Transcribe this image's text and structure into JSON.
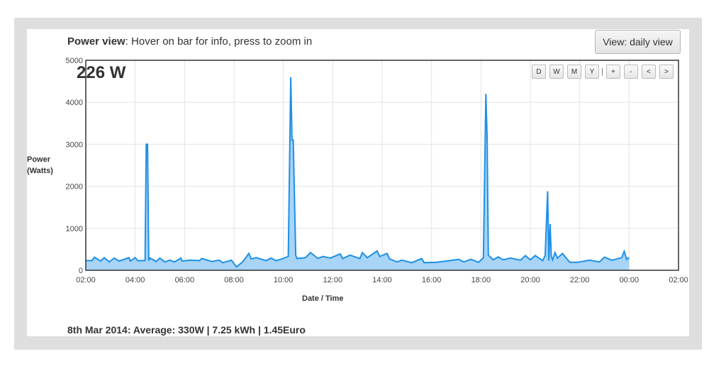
{
  "header": {
    "title_bold": "Power view",
    "title_rest": ": Hover on bar for info, press to zoom in",
    "view_button": "View: daily view"
  },
  "readout": {
    "current_power": "226 W"
  },
  "controls": [
    "D",
    "W",
    "M",
    "Y",
    "+",
    "-",
    "<",
    ">"
  ],
  "controls_separator": "|",
  "summary": "8th Mar 2014: Average: 330W | 7.25 kWh | 1.45Euro",
  "colors": {
    "line": "#1e90e6",
    "fill": "#a7d4f7",
    "grid": "#e3e3e3",
    "axis": "#333333"
  },
  "chart_data": {
    "type": "area",
    "xlabel": "Date / Time",
    "ylabel": [
      "Power",
      "(Watts)"
    ],
    "ylim": [
      0,
      5000
    ],
    "xlim": [
      2,
      26
    ],
    "yticks": [
      0,
      1000,
      2000,
      3000,
      4000,
      5000
    ],
    "xticks": [
      "02:00",
      "04:00",
      "06:00",
      "08:00",
      "10:00",
      "12:00",
      "14:00",
      "16:00",
      "18:00",
      "20:00",
      "22:00",
      "00:00",
      "02:00"
    ],
    "grid": true,
    "series": [
      {
        "x": [
          2.0,
          2.25,
          2.35,
          2.6,
          2.75,
          2.95,
          3.15,
          3.35,
          3.75,
          3.8,
          4.0,
          4.1,
          4.4,
          4.45,
          4.5,
          4.55,
          4.6,
          4.85,
          5.0,
          5.2,
          5.4,
          5.6,
          5.85,
          5.9,
          6.2,
          6.6,
          6.7,
          7.1,
          7.4,
          7.55,
          7.9,
          8.1,
          8.35,
          8.6,
          8.7,
          8.9,
          9.3,
          9.5,
          9.7,
          9.9,
          10.2,
          10.3,
          10.35,
          10.4,
          10.5,
          10.55,
          10.9,
          11.1,
          11.4,
          11.6,
          11.9,
          12.3,
          12.4,
          12.7,
          13.1,
          13.2,
          13.4,
          13.8,
          13.9,
          14.2,
          14.3,
          14.6,
          14.8,
          15.2,
          15.6,
          15.7,
          16.2,
          16.6,
          17.1,
          17.3,
          17.6,
          17.9,
          18.1,
          18.2,
          18.25,
          18.3,
          18.5,
          18.7,
          18.9,
          19.2,
          19.6,
          19.8,
          20.0,
          20.2,
          20.5,
          20.6,
          20.7,
          20.75,
          20.8,
          20.85,
          20.9,
          21.0,
          21.1,
          21.3,
          21.6,
          21.9,
          22.4,
          22.8,
          23.0,
          23.3,
          23.7,
          23.8,
          23.9,
          24.0
        ],
        "values": [
          230,
          230,
          310,
          220,
          300,
          200,
          290,
          220,
          300,
          220,
          300,
          230,
          230,
          3000,
          3000,
          230,
          290,
          210,
          290,
          200,
          240,
          200,
          290,
          220,
          240,
          230,
          280,
          210,
          240,
          180,
          240,
          80,
          200,
          400,
          270,
          300,
          230,
          290,
          230,
          260,
          330,
          4600,
          3100,
          3100,
          360,
          280,
          300,
          420,
          280,
          330,
          290,
          390,
          280,
          360,
          280,
          420,
          300,
          460,
          330,
          400,
          270,
          200,
          240,
          180,
          280,
          180,
          190,
          220,
          260,
          200,
          260,
          190,
          300,
          4200,
          3200,
          360,
          250,
          320,
          250,
          290,
          240,
          350,
          250,
          350,
          230,
          350,
          1880,
          230,
          1100,
          330,
          250,
          420,
          290,
          400,
          190,
          190,
          240,
          200,
          310,
          240,
          300,
          450,
          260,
          300
        ]
      }
    ]
  }
}
